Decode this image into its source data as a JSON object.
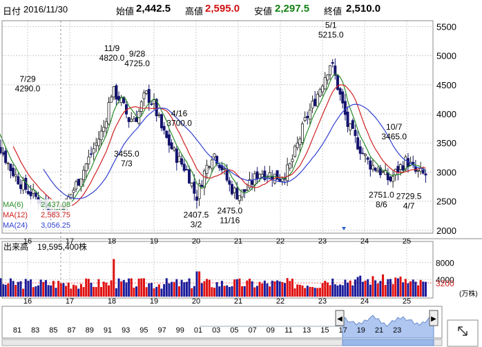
{
  "header": {
    "date_label": "日付",
    "date": "2016/11/30",
    "open_label": "始値",
    "open": "2,442.5",
    "high_label": "高値",
    "high": "2,595.0",
    "low_label": "安値",
    "low": "2,297.5",
    "close_label": "終値",
    "close": "2,510.0"
  },
  "colors": {
    "up": "#e01010",
    "down": "#1a1a9a",
    "high_text": "#d01010",
    "low_text": "#108010",
    "ma6": "#2a8a2a",
    "ma12": "#d02020",
    "ma24": "#3040d0",
    "grid": "#cccccc",
    "nav_fill": "#aec6f0"
  },
  "chart_data": [
    {
      "type": "candlestick",
      "title": "",
      "x_ticks": [
        "16",
        "17",
        "18",
        "19",
        "20",
        "21",
        "22",
        "23",
        "24",
        "25"
      ],
      "y_ticks": [
        2000,
        2500,
        3000,
        3500,
        4000,
        4500,
        5000,
        5500
      ],
      "ylim": [
        1950,
        5600
      ],
      "legend": [
        {
          "name": "MA(6)",
          "value": "2,437.08"
        },
        {
          "name": "MA(12)",
          "value": "2,583.75"
        },
        {
          "name": "MA(24)",
          "value": "3,056.25"
        }
      ],
      "annotations": [
        {
          "date": "7/29",
          "value": "4290.0"
        },
        {
          "date": "11/9",
          "value": "4820.0"
        },
        {
          "date": "9/28",
          "value": "4725.0"
        },
        {
          "date": "7/3",
          "value": "3455.0"
        },
        {
          "date": "4/16",
          "value": "3700.0"
        },
        {
          "date": "3/2",
          "value": "2407.5"
        },
        {
          "date": "11/16",
          "value": "2475.0"
        },
        {
          "date": "5/1",
          "value": "5215.0"
        },
        {
          "date": "10/7",
          "value": "3465.0"
        },
        {
          "date": "8/6",
          "value": "2751.0"
        },
        {
          "date": "4/7",
          "value": "2729.5"
        }
      ],
      "close_path": [
        [
          "15.0",
          3950
        ],
        [
          "15.3",
          3500
        ],
        [
          "15.6",
          3050
        ],
        [
          "15.9",
          2750
        ],
        [
          "16.3",
          2500
        ],
        [
          "16.6",
          2350
        ],
        [
          "16.9",
          2450
        ],
        [
          "17.2",
          2850
        ],
        [
          "17.5",
          3300
        ],
        [
          "17.8",
          3750
        ],
        [
          "18.0",
          4400
        ],
        [
          "18.2",
          4250
        ],
        [
          "18.4",
          3900
        ],
        [
          "18.6",
          3950
        ],
        [
          "18.8",
          4350
        ],
        [
          "19.0",
          4150
        ],
        [
          "19.2",
          3700
        ],
        [
          "19.5",
          3300
        ],
        [
          "19.8",
          3000
        ],
        [
          "20.0",
          2550
        ],
        [
          "20.2",
          3000
        ],
        [
          "20.4",
          3350
        ],
        [
          "20.6",
          3100
        ],
        [
          "20.8",
          2750
        ],
        [
          "21.0",
          2600
        ],
        [
          "21.2",
          2700
        ],
        [
          "21.5",
          3000
        ],
        [
          "21.8",
          2950
        ],
        [
          "22.0",
          2900
        ],
        [
          "22.2",
          3050
        ],
        [
          "22.4",
          3450
        ],
        [
          "22.6",
          3900
        ],
        [
          "22.8",
          4200
        ],
        [
          "23.0",
          4550
        ],
        [
          "23.2",
          4900
        ],
        [
          "23.35",
          4500
        ],
        [
          "23.6",
          3800
        ],
        [
          "23.9",
          3400
        ],
        [
          "24.1",
          3150
        ],
        [
          "24.4",
          3000
        ],
        [
          "24.6",
          2850
        ],
        [
          "24.8",
          3050
        ],
        [
          "25.0",
          3200
        ],
        [
          "25.2",
          3000
        ],
        [
          "25.4",
          2950
        ]
      ]
    },
    {
      "type": "bar",
      "title": "出来高",
      "value_text": "19,595,400株",
      "y_ticks": [
        8000,
        4000
      ],
      "reference": "3200",
      "unit": "(万株)"
    }
  ],
  "navigator": {
    "years": [
      "81",
      "83",
      "85",
      "87",
      "89",
      "91",
      "93",
      "95",
      "97",
      "99",
      "01",
      "03",
      "05",
      "07",
      "09",
      "11",
      "13",
      "15",
      "17",
      "19",
      "21",
      "23"
    ],
    "left_arrow": "◀",
    "right_arrow": "▶",
    "handle": "◀"
  }
}
